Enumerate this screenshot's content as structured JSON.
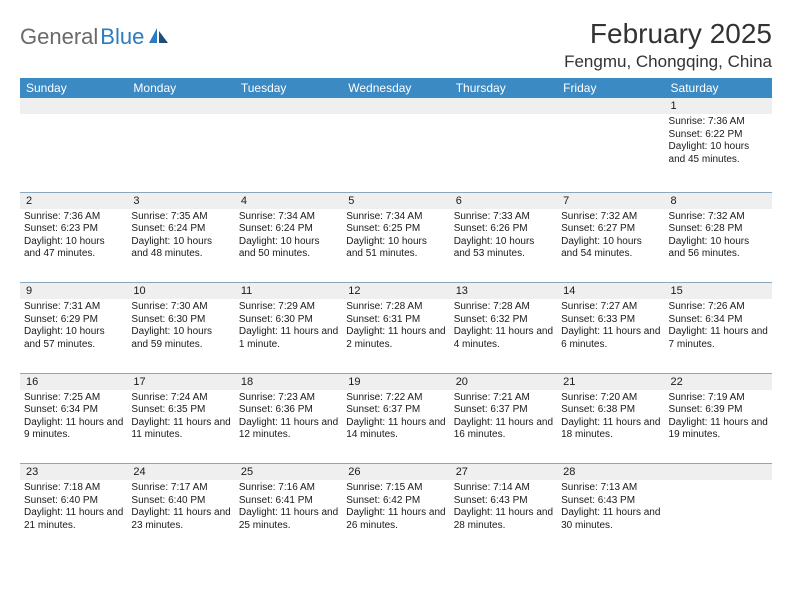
{
  "logo": {
    "text1": "General",
    "text2": "Blue"
  },
  "title": {
    "month": "February 2025",
    "location": "Fengmu, Chongqing, China"
  },
  "colors": {
    "header_bg": "#3b8ac4",
    "header_text": "#ffffff",
    "grid_line": "#8aa7bd",
    "daynum_bg": "#efefef",
    "text": "#1a1a1a",
    "logo_gray": "#6a6a6a",
    "logo_blue": "#2b7cc0"
  },
  "daynames": [
    "Sunday",
    "Monday",
    "Tuesday",
    "Wednesday",
    "Thursday",
    "Friday",
    "Saturday"
  ],
  "weeks": [
    [
      null,
      null,
      null,
      null,
      null,
      null,
      {
        "n": "1",
        "sr": "7:36 AM",
        "ss": "6:22 PM",
        "dl": "10 hours and 45 minutes."
      }
    ],
    [
      {
        "n": "2",
        "sr": "7:36 AM",
        "ss": "6:23 PM",
        "dl": "10 hours and 47 minutes."
      },
      {
        "n": "3",
        "sr": "7:35 AM",
        "ss": "6:24 PM",
        "dl": "10 hours and 48 minutes."
      },
      {
        "n": "4",
        "sr": "7:34 AM",
        "ss": "6:24 PM",
        "dl": "10 hours and 50 minutes."
      },
      {
        "n": "5",
        "sr": "7:34 AM",
        "ss": "6:25 PM",
        "dl": "10 hours and 51 minutes."
      },
      {
        "n": "6",
        "sr": "7:33 AM",
        "ss": "6:26 PM",
        "dl": "10 hours and 53 minutes."
      },
      {
        "n": "7",
        "sr": "7:32 AM",
        "ss": "6:27 PM",
        "dl": "10 hours and 54 minutes."
      },
      {
        "n": "8",
        "sr": "7:32 AM",
        "ss": "6:28 PM",
        "dl": "10 hours and 56 minutes."
      }
    ],
    [
      {
        "n": "9",
        "sr": "7:31 AM",
        "ss": "6:29 PM",
        "dl": "10 hours and 57 minutes."
      },
      {
        "n": "10",
        "sr": "7:30 AM",
        "ss": "6:30 PM",
        "dl": "10 hours and 59 minutes."
      },
      {
        "n": "11",
        "sr": "7:29 AM",
        "ss": "6:30 PM",
        "dl": "11 hours and 1 minute."
      },
      {
        "n": "12",
        "sr": "7:28 AM",
        "ss": "6:31 PM",
        "dl": "11 hours and 2 minutes."
      },
      {
        "n": "13",
        "sr": "7:28 AM",
        "ss": "6:32 PM",
        "dl": "11 hours and 4 minutes."
      },
      {
        "n": "14",
        "sr": "7:27 AM",
        "ss": "6:33 PM",
        "dl": "11 hours and 6 minutes."
      },
      {
        "n": "15",
        "sr": "7:26 AM",
        "ss": "6:34 PM",
        "dl": "11 hours and 7 minutes."
      }
    ],
    [
      {
        "n": "16",
        "sr": "7:25 AM",
        "ss": "6:34 PM",
        "dl": "11 hours and 9 minutes."
      },
      {
        "n": "17",
        "sr": "7:24 AM",
        "ss": "6:35 PM",
        "dl": "11 hours and 11 minutes."
      },
      {
        "n": "18",
        "sr": "7:23 AM",
        "ss": "6:36 PM",
        "dl": "11 hours and 12 minutes."
      },
      {
        "n": "19",
        "sr": "7:22 AM",
        "ss": "6:37 PM",
        "dl": "11 hours and 14 minutes."
      },
      {
        "n": "20",
        "sr": "7:21 AM",
        "ss": "6:37 PM",
        "dl": "11 hours and 16 minutes."
      },
      {
        "n": "21",
        "sr": "7:20 AM",
        "ss": "6:38 PM",
        "dl": "11 hours and 18 minutes."
      },
      {
        "n": "22",
        "sr": "7:19 AM",
        "ss": "6:39 PM",
        "dl": "11 hours and 19 minutes."
      }
    ],
    [
      {
        "n": "23",
        "sr": "7:18 AM",
        "ss": "6:40 PM",
        "dl": "11 hours and 21 minutes."
      },
      {
        "n": "24",
        "sr": "7:17 AM",
        "ss": "6:40 PM",
        "dl": "11 hours and 23 minutes."
      },
      {
        "n": "25",
        "sr": "7:16 AM",
        "ss": "6:41 PM",
        "dl": "11 hours and 25 minutes."
      },
      {
        "n": "26",
        "sr": "7:15 AM",
        "ss": "6:42 PM",
        "dl": "11 hours and 26 minutes."
      },
      {
        "n": "27",
        "sr": "7:14 AM",
        "ss": "6:43 PM",
        "dl": "11 hours and 28 minutes."
      },
      {
        "n": "28",
        "sr": "7:13 AM",
        "ss": "6:43 PM",
        "dl": "11 hours and 30 minutes."
      },
      null
    ]
  ],
  "labels": {
    "sunrise": "Sunrise: ",
    "sunset": "Sunset: ",
    "daylight": "Daylight: "
  }
}
